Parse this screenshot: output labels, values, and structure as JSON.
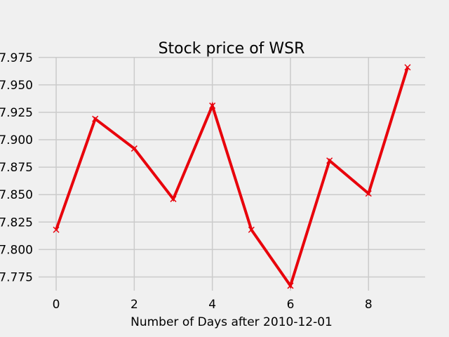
{
  "chart_data": {
    "type": "line",
    "title": "Stock price of WSR",
    "xlabel": "Number of Days after 2010-12-01",
    "ylabel": "",
    "x": [
      0,
      1,
      2,
      3,
      4,
      5,
      6,
      7,
      8,
      9
    ],
    "series": [
      {
        "values": [
          7.818,
          7.919,
          7.892,
          7.846,
          7.931,
          7.818,
          7.767,
          7.881,
          7.851,
          7.966
        ],
        "color": "#e8000b",
        "marker": "x"
      }
    ],
    "xlim": [
      -0.45,
      9.45
    ],
    "ylim": [
      7.7625,
      7.9755
    ],
    "xticks": [
      0,
      2,
      4,
      6,
      8
    ],
    "xtick_labels": [
      "0",
      "2",
      "4",
      "6",
      "8"
    ],
    "yticks": [
      7.775,
      7.8,
      7.825,
      7.85,
      7.875,
      7.9,
      7.925,
      7.95,
      7.975
    ],
    "ytick_labels": [
      "7.775",
      "7.800",
      "7.825",
      "7.850",
      "7.875",
      "7.900",
      "7.925",
      "7.950",
      "7.975"
    ],
    "grid": true,
    "style": "fivethirtyeight",
    "background_color": "#f0f0f0",
    "grid_color": "#cbcbcb"
  }
}
